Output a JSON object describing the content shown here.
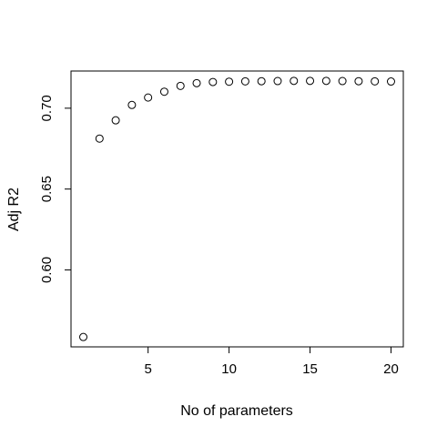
{
  "chart_data": {
    "type": "scatter",
    "title": "",
    "xlabel": "No of parameters",
    "ylabel": "Adj R2",
    "x": [
      1,
      2,
      3,
      4,
      5,
      6,
      7,
      8,
      9,
      10,
      11,
      12,
      13,
      14,
      15,
      16,
      17,
      18,
      19,
      20
    ],
    "y": [
      0.5585,
      0.6812,
      0.6925,
      0.702,
      0.7066,
      0.7102,
      0.7138,
      0.7155,
      0.7162,
      0.7164,
      0.7166,
      0.7167,
      0.7168,
      0.7169,
      0.7169,
      0.7169,
      0.7168,
      0.7167,
      0.7166,
      0.7165
    ],
    "xlim": [
      0.24,
      20.76
    ],
    "ylim": [
      0.5524,
      0.723
    ],
    "xticks": [
      5,
      10,
      15,
      20
    ],
    "xtick_labels": [
      "5",
      "10",
      "15",
      "20"
    ],
    "yticks": [
      0.6,
      0.65,
      0.7
    ],
    "ytick_labels": [
      "0.60",
      "0.65",
      "0.70"
    ],
    "marker": "open-circle",
    "grid": false,
    "colors": {
      "points": "#000000",
      "axes": "#000000",
      "background": "#ffffff"
    }
  }
}
